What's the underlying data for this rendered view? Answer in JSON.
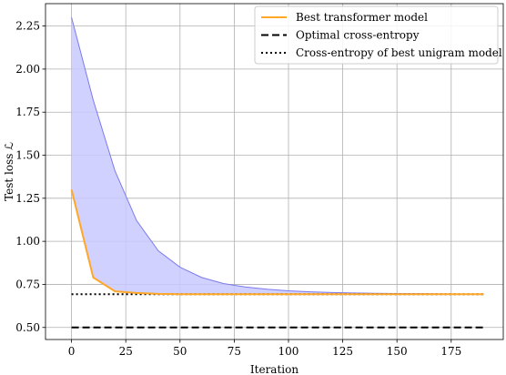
{
  "chart_data": {
    "type": "line",
    "xlabel": "Iteration",
    "ylabel": "Test loss ℒ",
    "xlim": [
      -12,
      199
    ],
    "ylim": [
      0.43,
      2.38
    ],
    "x_ticks": [
      0,
      25,
      50,
      75,
      100,
      125,
      150,
      175
    ],
    "y_ticks": [
      0.5,
      0.75,
      1.0,
      1.25,
      1.5,
      1.75,
      2.0,
      2.25
    ],
    "grid": true,
    "legend_position": "top-right",
    "colors": {
      "transformer": "#ffa726",
      "band_fill": "#c9c9ff",
      "band_edge": "#7b7bec",
      "optimal": "#000000",
      "unigram": "#000000"
    },
    "series": [
      {
        "name": "Best transformer model",
        "style": "solid",
        "x": [
          0,
          10,
          20,
          30,
          40,
          50,
          60,
          70,
          80,
          90,
          100,
          110,
          120,
          130,
          140,
          150,
          160,
          170,
          180,
          190
        ],
        "values": [
          1.3,
          0.79,
          0.71,
          0.7,
          0.695,
          0.693,
          0.693,
          0.693,
          0.693,
          0.693,
          0.693,
          0.693,
          0.693,
          0.693,
          0.693,
          0.693,
          0.693,
          0.693,
          0.693,
          0.693
        ]
      },
      {
        "name": "Optimal cross-entropy",
        "style": "dashed",
        "x": [
          0,
          190
        ],
        "values": [
          0.5,
          0.5
        ]
      },
      {
        "name": "Cross-entropy of best unigram model",
        "style": "dotted",
        "x": [
          0,
          190
        ],
        "values": [
          0.693,
          0.693
        ]
      }
    ],
    "band": {
      "x": [
        0,
        10,
        20,
        30,
        40,
        50,
        60,
        70,
        80,
        90,
        100,
        110,
        120,
        130,
        140,
        150,
        160,
        170,
        180,
        190
      ],
      "upper": [
        2.3,
        1.82,
        1.41,
        1.12,
        0.945,
        0.85,
        0.79,
        0.755,
        0.735,
        0.722,
        0.713,
        0.707,
        0.703,
        0.7,
        0.698,
        0.697,
        0.696,
        0.695,
        0.694,
        0.694
      ],
      "lower": [
        1.3,
        0.79,
        0.71,
        0.7,
        0.695,
        0.693,
        0.693,
        0.693,
        0.693,
        0.693,
        0.693,
        0.693,
        0.693,
        0.693,
        0.693,
        0.693,
        0.693,
        0.693,
        0.693,
        0.693
      ]
    }
  }
}
